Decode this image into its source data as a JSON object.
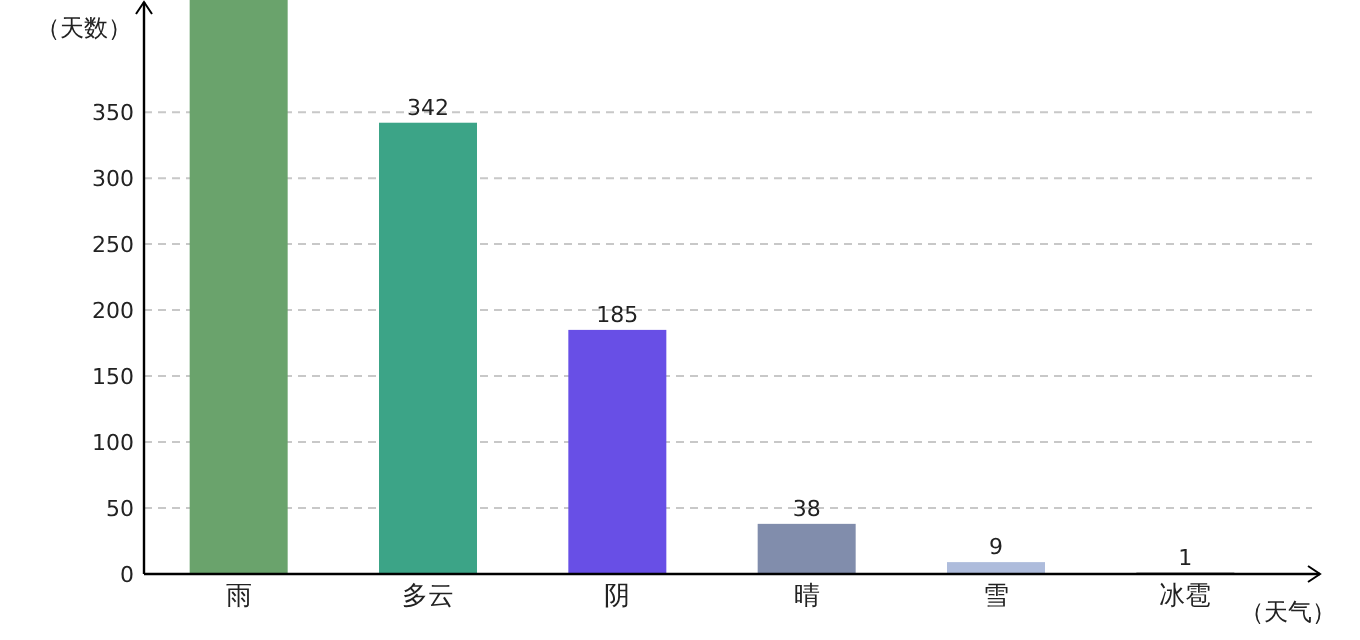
{
  "chart_data": {
    "type": "bar",
    "xlabel": "（天气）",
    "ylabel": "（天数）",
    "categories": [
      "雨",
      "多云",
      "阴",
      "晴",
      "雪",
      "冰雹"
    ],
    "values": [
      435,
      342,
      185,
      38,
      9,
      1
    ],
    "value_labels": [
      null,
      "342",
      "185",
      "38",
      "9",
      "1"
    ],
    "colors": [
      "#6aa36c",
      "#3ca487",
      "#684fe6",
      "#818dac",
      "#aebcdc",
      "#222222"
    ],
    "ylim": [
      0,
      435
    ],
    "yticks": [
      0,
      50,
      100,
      150,
      200,
      250,
      300,
      350
    ],
    "grid": "y"
  }
}
